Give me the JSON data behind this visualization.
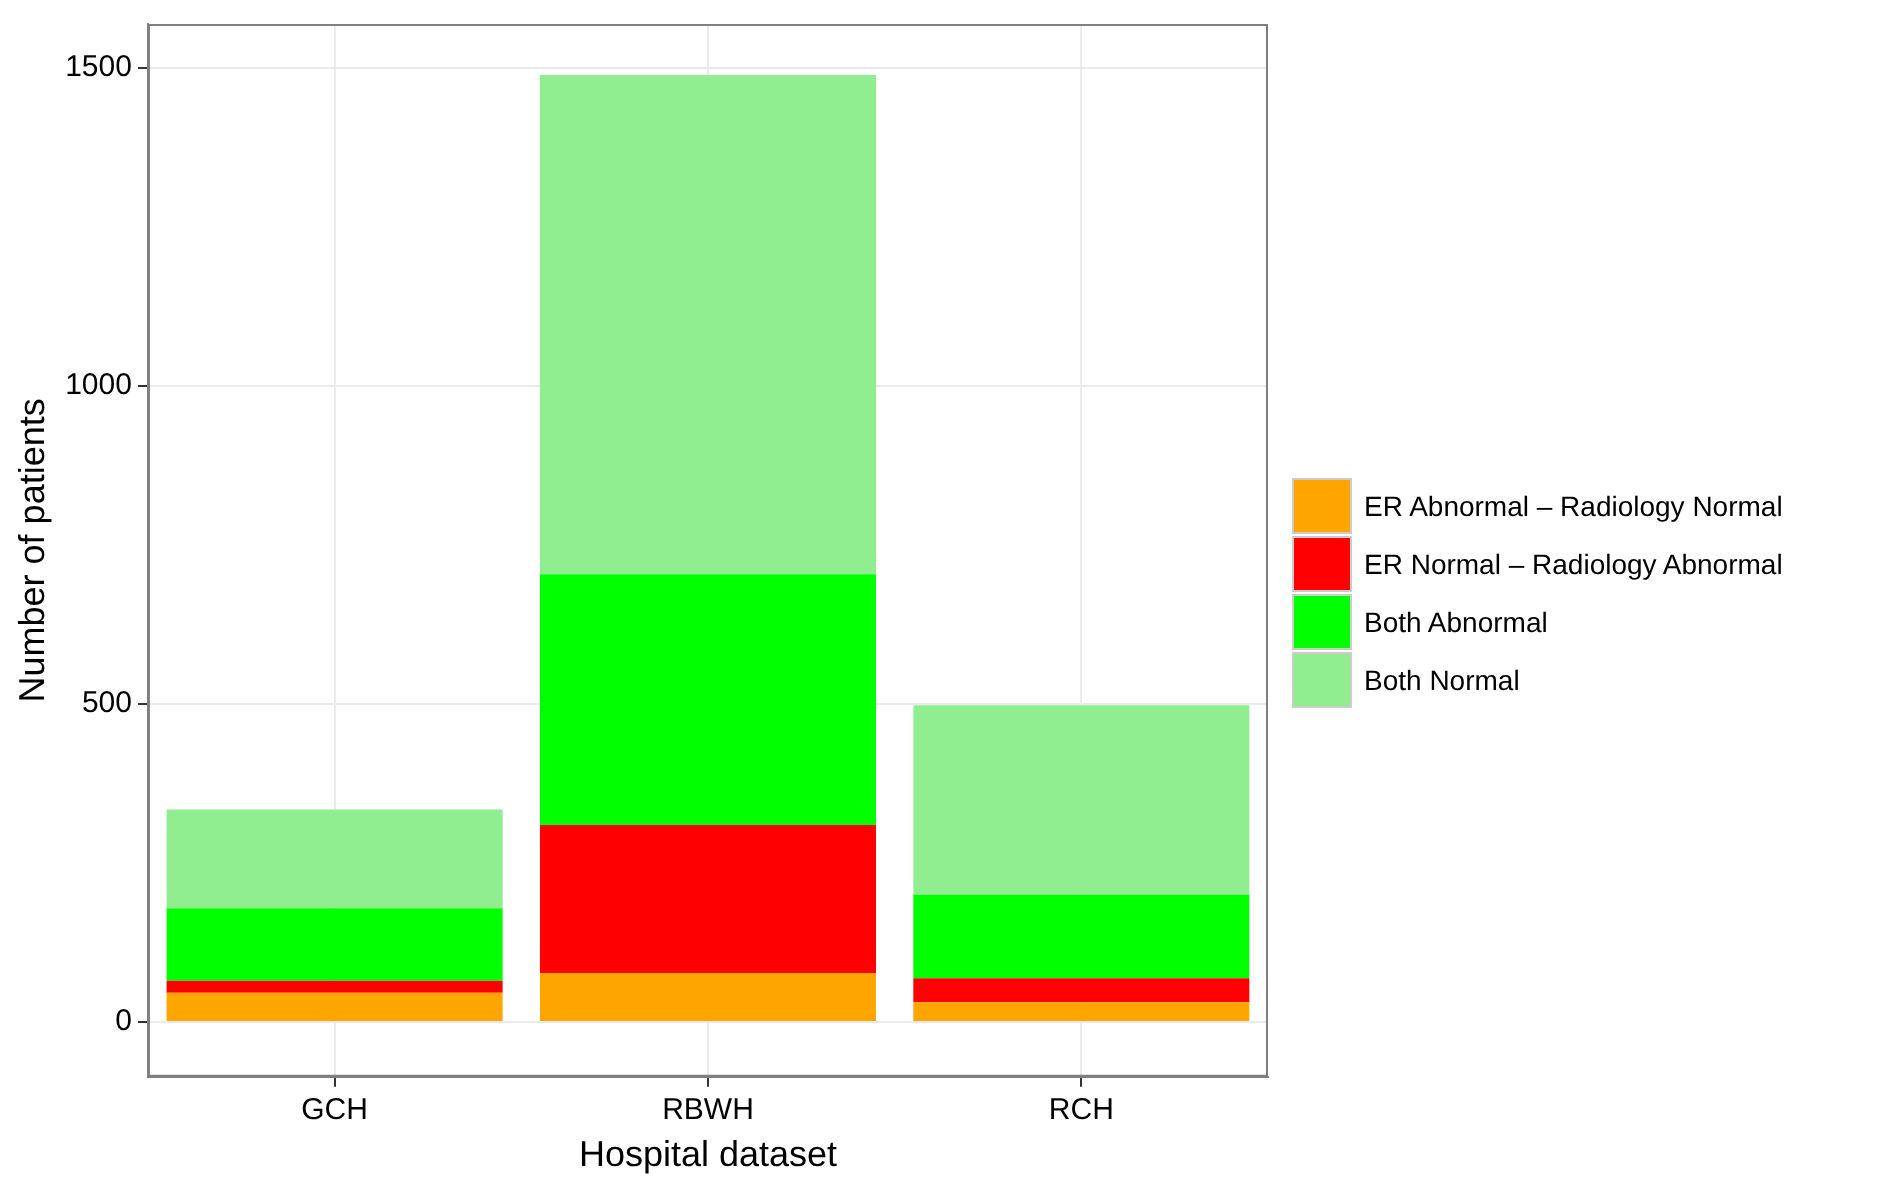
{
  "chart_data": {
    "type": "bar",
    "stacked": true,
    "xlabel": "Hospital dataset",
    "ylabel": "Number of patients",
    "categories": [
      "GCH",
      "RBWH",
      "RCH"
    ],
    "series": [
      {
        "name": "ER Abnormal – Radiology Normal",
        "color": "#ffa500",
        "values": [
          46,
          77,
          31
        ]
      },
      {
        "name": "ER Normal – Radiology Abnormal",
        "color": "#ff0000",
        "values": [
          19,
          233,
          38
        ]
      },
      {
        "name": "Both Abnormal",
        "color": "#00ff00",
        "values": [
          114,
          394,
          131
        ]
      },
      {
        "name": "Both Normal",
        "color": "#90ee90",
        "values": [
          155,
          785,
          298
        ]
      }
    ],
    "ylim": [
      -86,
      1569
    ],
    "yticks": [
      0,
      500,
      1000,
      1500
    ],
    "grid": true,
    "legend": "right"
  }
}
